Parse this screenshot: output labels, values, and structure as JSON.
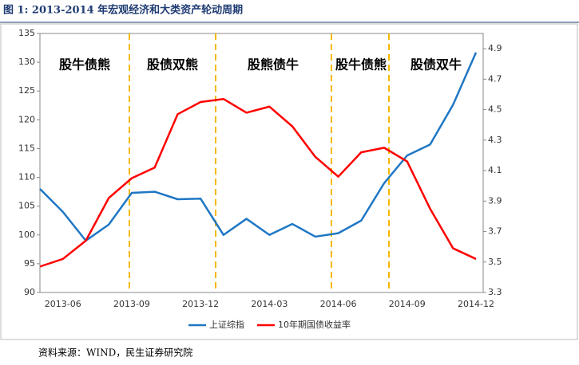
{
  "title": "图 1:  2013-2014 年宏观经济和大类资产轮动周期",
  "source": "资料来源：WIND，民生证券研究院",
  "chart_data": {
    "type": "line",
    "categories": [
      null,
      "2013-06",
      null,
      null,
      "2013-09",
      null,
      null,
      "2013-12",
      null,
      null,
      "2014-03",
      null,
      null,
      "2014-06",
      null,
      null,
      "2014-09",
      null,
      null,
      "2014-12"
    ],
    "series": [
      {
        "name": "上证综指",
        "color": "#1f77c4",
        "values": [
          108,
          104,
          99,
          101.8,
          107.3,
          107.5,
          106.2,
          106.3,
          100,
          102.8,
          100,
          101.9,
          99.7,
          100.3,
          102.5,
          109,
          113.8,
          115.7,
          122.6,
          131.7
        ]
      },
      {
        "name": "10年期国债收益率",
        "color": "#ff0000",
        "axis": "y2",
        "values": [
          3.47,
          3.52,
          3.64,
          3.92,
          4.05,
          4.12,
          4.47,
          4.55,
          4.57,
          4.48,
          4.52,
          4.39,
          4.19,
          4.06,
          4.22,
          4.25,
          4.16,
          3.85,
          3.59,
          3.52
        ]
      }
    ],
    "ylim": [
      90,
      135
    ],
    "yticks": [
      90,
      95,
      100,
      105,
      110,
      115,
      120,
      125,
      130,
      135
    ],
    "y2lim": [
      3.3,
      5.0
    ],
    "y2ticks": [
      3.3,
      3.5,
      3.7,
      3.9,
      4.1,
      4.3,
      4.5,
      4.7,
      4.9
    ],
    "annotations": [
      "股牛债熊",
      "股债双熊",
      "股熊债牛",
      "股牛债熊",
      "股债双牛"
    ],
    "legend": "bottom"
  }
}
